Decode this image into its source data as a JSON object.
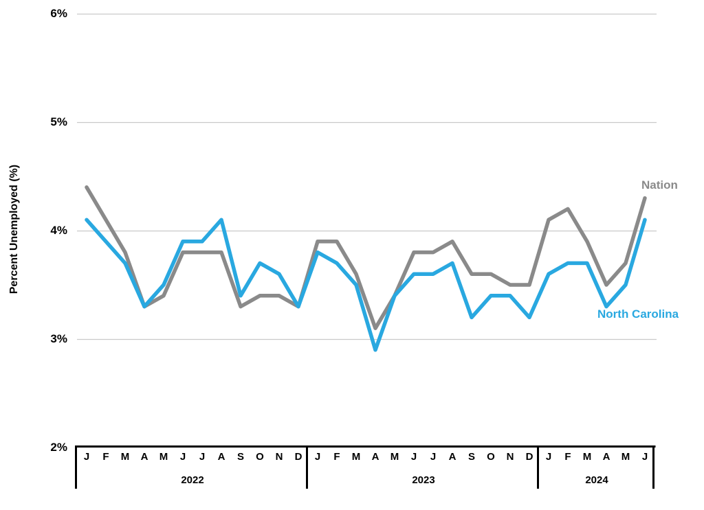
{
  "chart_data": {
    "type": "line",
    "title": "",
    "ylabel": "Percent Unemployed (%)",
    "xlabel": "",
    "grid": true,
    "legend_position": "end-of-line labels",
    "y_axis": {
      "min": 2,
      "max": 6,
      "ticks": [
        {
          "value": 6,
          "label": "6%"
        },
        {
          "value": 5,
          "label": "5%"
        },
        {
          "value": 4,
          "label": "4%"
        },
        {
          "value": 3,
          "label": "3%"
        },
        {
          "value": 2,
          "label": "2%"
        }
      ]
    },
    "x_axis": {
      "year_groups": [
        {
          "label": "2022",
          "months": [
            "J",
            "F",
            "M",
            "A",
            "M",
            "J",
            "J",
            "A",
            "S",
            "O",
            "N",
            "D"
          ]
        },
        {
          "label": "2023",
          "months": [
            "J",
            "F",
            "M",
            "A",
            "M",
            "J",
            "J",
            "A",
            "S",
            "O",
            "N",
            "D"
          ]
        },
        {
          "label": "2024",
          "months": [
            "J",
            "F",
            "M",
            "A",
            "M",
            "J"
          ]
        }
      ]
    },
    "series": [
      {
        "name": "Nation",
        "color": "#8a8a8a",
        "values": [
          4.4,
          4.1,
          3.8,
          3.3,
          3.4,
          3.8,
          3.8,
          3.8,
          3.3,
          3.4,
          3.4,
          3.3,
          3.9,
          3.9,
          3.6,
          3.1,
          3.4,
          3.8,
          3.8,
          3.9,
          3.6,
          3.6,
          3.5,
          3.5,
          4.1,
          4.2,
          3.9,
          3.5,
          3.7,
          4.3
        ]
      },
      {
        "name": "North Carolina",
        "color": "#29a8e0",
        "values": [
          4.1,
          3.9,
          3.7,
          3.3,
          3.5,
          3.9,
          3.9,
          4.1,
          3.4,
          3.7,
          3.6,
          3.3,
          3.8,
          3.7,
          3.5,
          2.9,
          3.4,
          3.6,
          3.6,
          3.7,
          3.2,
          3.4,
          3.4,
          3.2,
          3.6,
          3.7,
          3.7,
          3.3,
          3.5,
          4.1
        ]
      }
    ],
    "colors": {
      "gridline": "#c9c9c9",
      "axis": "#000000",
      "background": "#ffffff"
    }
  }
}
